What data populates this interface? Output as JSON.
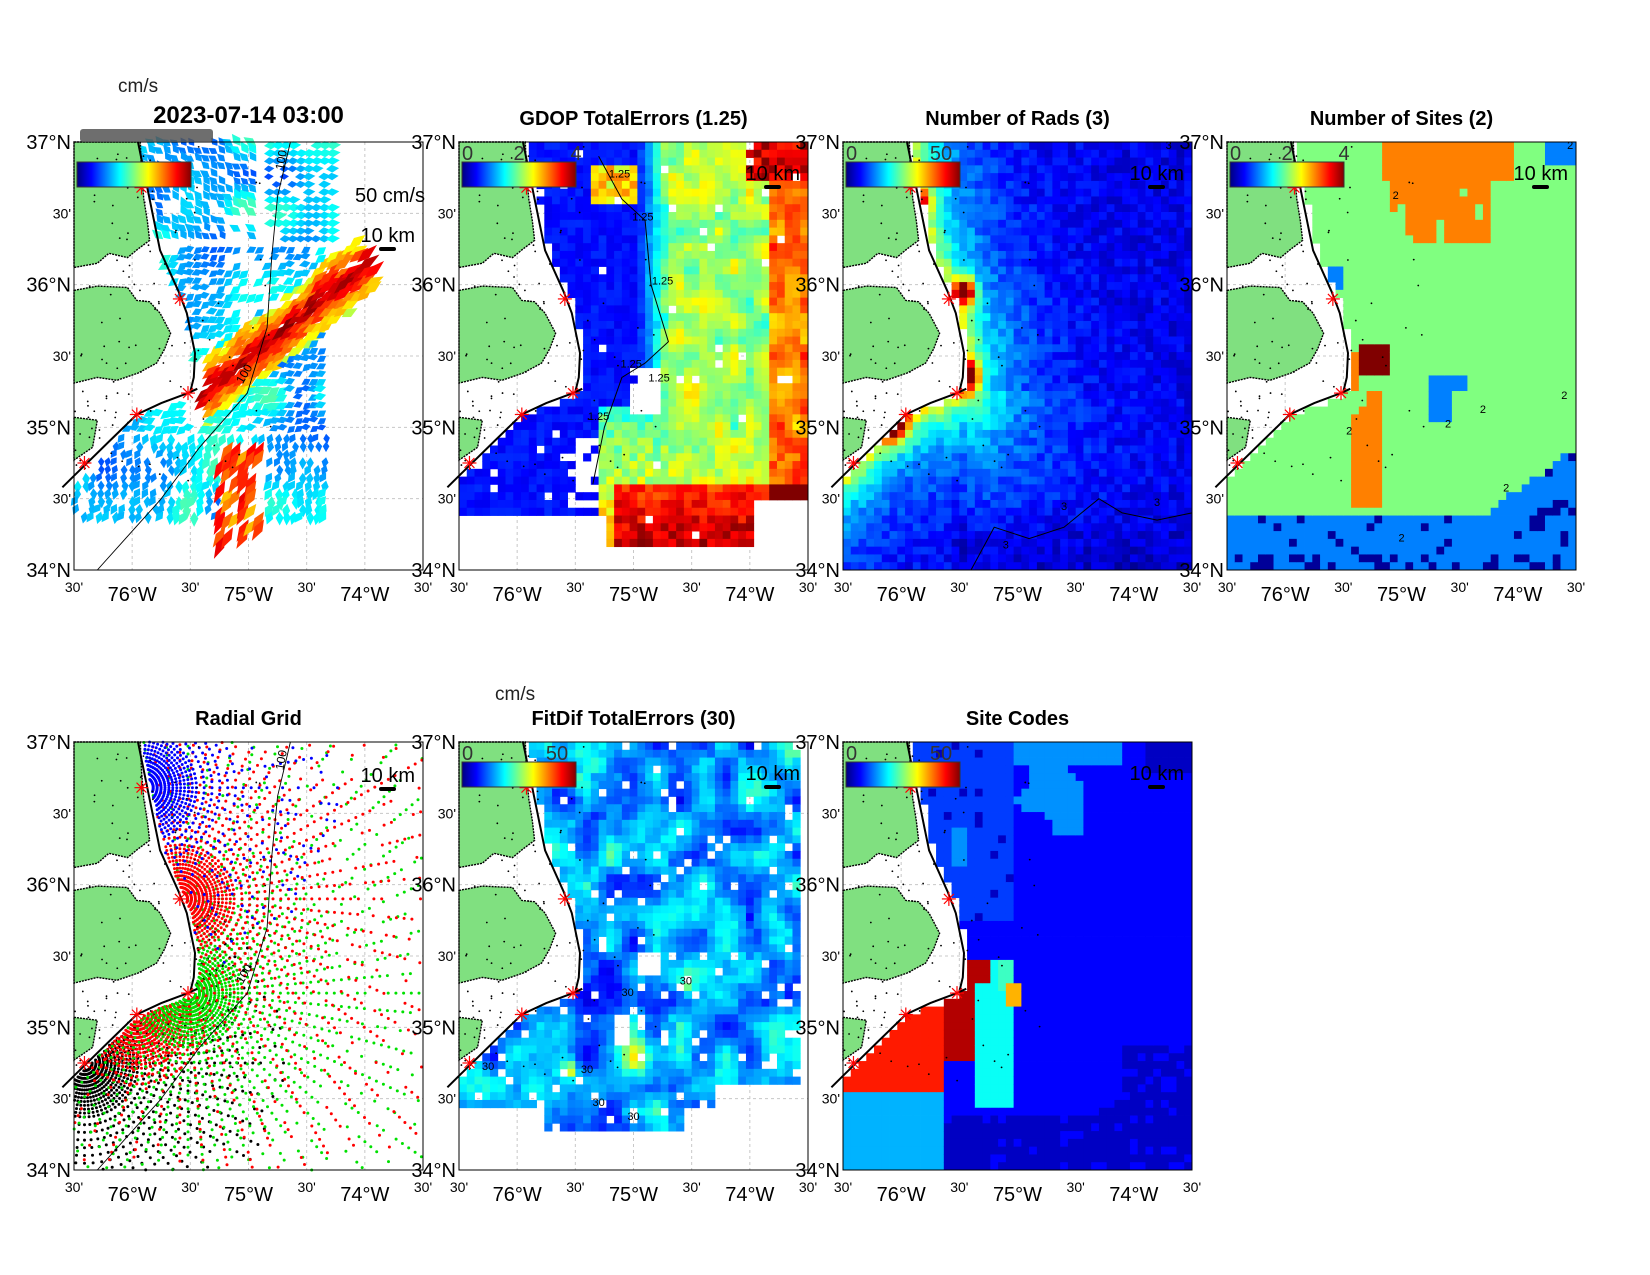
{
  "axes": {
    "lat_range": [
      34,
      37
    ],
    "lon_range": [
      -76.5,
      -73.5
    ],
    "lat_ticks": [
      "37°N",
      "30'",
      "36°N",
      "30'",
      "35°N",
      "30'",
      "34°N"
    ],
    "lon_ticks": [
      "30'",
      "76°W",
      "30'",
      "75°W",
      "30'",
      "74°W",
      "30'"
    ],
    "grid": true
  },
  "sites": [
    {
      "lon": -75.92,
      "lat": 36.68
    },
    {
      "lon": -75.59,
      "lat": 35.9
    },
    {
      "lon": -75.52,
      "lat": 35.24
    },
    {
      "lon": -75.96,
      "lat": 35.09
    },
    {
      "lon": -76.41,
      "lat": 34.75
    }
  ],
  "colors": {
    "land": "#80e080",
    "site_marker": "#ff0000",
    "coast": "#000000",
    "grid": "#c8c8c8",
    "colormap": "jet"
  },
  "panels": [
    {
      "title": "2023-07-14 03:00",
      "colorbar": {
        "unit": "cm/s",
        "ticks": [],
        "range": [
          0,
          100
        ]
      },
      "reference_vector": "50 cm/s",
      "scalebar": "10 km",
      "isobath_label": "100"
    },
    {
      "title": "GDOP TotalErrors (1.25)",
      "colorbar": {
        "ticks": [
          "0",
          "2",
          "4"
        ],
        "tick_values": [
          0,
          2,
          4
        ],
        "range": [
          0,
          4
        ]
      },
      "scalebar": "10 km",
      "contour_label": "1.25"
    },
    {
      "title": "Number of Rads (3)",
      "colorbar": {
        "ticks": [
          "0",
          "50"
        ],
        "tick_values": [
          0,
          50
        ],
        "range": [
          0,
          60
        ]
      },
      "scalebar": "10 km",
      "contour_label": "3"
    },
    {
      "title": "Number of Sites (2)",
      "colorbar": {
        "ticks": [
          "0",
          "2",
          "4"
        ],
        "tick_values": [
          0,
          2,
          4
        ],
        "range": [
          0,
          4
        ]
      },
      "scalebar": "10 km",
      "contour_label": "2"
    },
    {
      "title": "Radial Grid",
      "scalebar": "10 km",
      "isobath_label": "100",
      "site_dot_colors": [
        "#0000ff",
        "#ff0000",
        "#00e000",
        "#ff0000",
        "#000000"
      ]
    },
    {
      "title": "FitDif TotalErrors (30)",
      "colorbar": {
        "unit": "cm/s",
        "ticks": [
          "0",
          "50"
        ],
        "tick_values": [
          0,
          50
        ],
        "range": [
          0,
          60
        ]
      },
      "scalebar": "10 km",
      "contour_label": "30"
    },
    {
      "title": "Site Codes",
      "colorbar": {
        "ticks": [
          "0",
          "50"
        ],
        "tick_values": [
          0,
          50
        ],
        "range": [
          0,
          60
        ]
      },
      "scalebar": "10 km"
    }
  ],
  "chart_data": [
    {
      "type": "vector",
      "title": "2023-07-14 03:00",
      "colorbar_label": "cm/s",
      "color_range": [
        0,
        100
      ]
    },
    {
      "type": "heatmap",
      "title": "GDOP TotalErrors (1.25)",
      "color_range": [
        0,
        4
      ],
      "contour_levels": [
        1.25
      ]
    },
    {
      "type": "heatmap",
      "title": "Number of Rads (3)",
      "color_range": [
        0,
        60
      ],
      "contour_levels": [
        3
      ]
    },
    {
      "type": "heatmap",
      "title": "Number of Sites (2)",
      "color_range": [
        0,
        4
      ],
      "contour_levels": [
        2
      ]
    },
    {
      "type": "scatter",
      "title": "Radial Grid",
      "isobath_levels": [
        100
      ]
    },
    {
      "type": "heatmap",
      "title": "FitDif TotalErrors (30)",
      "colorbar_label": "cm/s",
      "color_range": [
        0,
        60
      ],
      "contour_levels": [
        30
      ]
    },
    {
      "type": "heatmap",
      "title": "Site Codes",
      "color_range": [
        0,
        60
      ]
    }
  ]
}
